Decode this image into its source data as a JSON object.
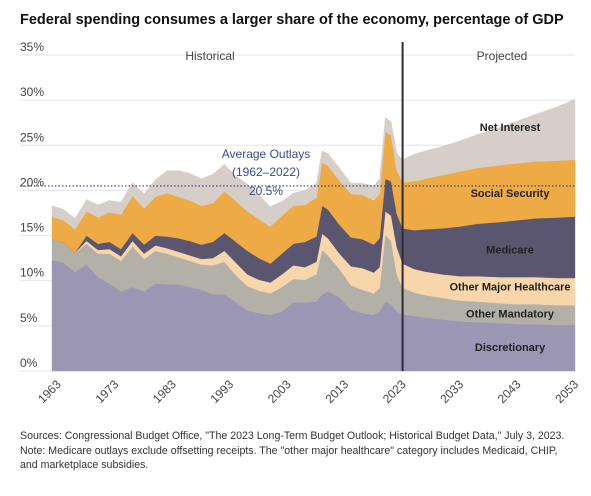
{
  "title": "Federal spending consumes a larger share of the economy, percentage of GDP",
  "sources": [
    "Sources: Congressional Budget Office, \"The 2023 Long-Term Budget Outlook; Historical Budget Data,\" July 3, 2023.",
    "Note: Medicare outlays exclude offsetting receipts. The \"other major healthcare\" category includes Medicaid, CHIP,",
    "and marketplace subsidies."
  ],
  "colors": {
    "discretionary": "#9b96b3",
    "other_mandatory": "#b3b0a8",
    "other_major_healthcare": "#f7d6ab",
    "medicare": "#5b5670",
    "social_security": "#eeaa45",
    "net_interest": "#d6cfc9",
    "average_line": "#2c3e7a",
    "divider": "#2a2a38",
    "grid": "#e4e4e4"
  },
  "chart_data": {
    "type": "area",
    "stacked": true,
    "title": "Federal spending consumes a larger share of the economy, percentage of GDP",
    "xlabel": "",
    "ylabel": "",
    "ylim": [
      0,
      35
    ],
    "xlim": [
      1962,
      2053
    ],
    "y_ticks": [
      "0%",
      "5%",
      "10%",
      "15%",
      "20%",
      "25%",
      "30%",
      "35%"
    ],
    "x_ticks": [
      "1963",
      "1973",
      "1983",
      "1993",
      "2003",
      "2013",
      "2023",
      "2033",
      "2043",
      "2053"
    ],
    "grid": true,
    "regions": {
      "historical": "Historical",
      "projected": "Projected",
      "divider_year": 2023
    },
    "average": {
      "value": 20.5,
      "label_lines": [
        "Average Outlays",
        "(1962–2022)"
      ],
      "value_label": "20.5%"
    },
    "x": [
      1962,
      1964,
      1966,
      1968,
      1970,
      1972,
      1974,
      1976,
      1978,
      1980,
      1982,
      1984,
      1986,
      1988,
      1990,
      1992,
      1994,
      1996,
      1998,
      2000,
      2002,
      2004,
      2006,
      2008,
      2009,
      2010,
      2012,
      2014,
      2016,
      2018,
      2019,
      2020,
      2021,
      2022,
      2023,
      2025,
      2027,
      2030,
      2033,
      2036,
      2040,
      2043,
      2046,
      2050,
      2053
    ],
    "series": [
      {
        "name": "Discretionary",
        "values": [
          12.3,
          12.0,
          11.0,
          11.8,
          10.4,
          9.7,
          8.8,
          9.3,
          8.8,
          9.7,
          9.6,
          9.6,
          9.3,
          9.0,
          8.5,
          8.5,
          7.6,
          6.7,
          6.4,
          6.2,
          6.6,
          7.6,
          7.6,
          7.7,
          8.5,
          8.8,
          8.2,
          6.8,
          6.4,
          6.2,
          6.6,
          7.7,
          7.4,
          6.6,
          6.3,
          6.1,
          5.9,
          5.7,
          5.5,
          5.4,
          5.3,
          5.2,
          5.2,
          5.1,
          5.1
        ]
      },
      {
        "name": "Other Mandatory",
        "values": [
          2.3,
          2.2,
          2.1,
          2.3,
          2.6,
          3.3,
          3.4,
          4.5,
          3.6,
          3.6,
          3.4,
          3.0,
          2.9,
          2.8,
          3.2,
          3.6,
          3.0,
          2.7,
          2.5,
          2.4,
          2.7,
          2.6,
          2.5,
          3.0,
          4.9,
          4.0,
          3.1,
          2.7,
          2.6,
          2.4,
          2.6,
          7.4,
          7.0,
          4.1,
          2.9,
          2.6,
          2.5,
          2.4,
          2.3,
          2.3,
          2.2,
          2.2,
          2.2,
          2.2,
          2.2
        ]
      },
      {
        "name": "Other Major Healthcare",
        "values": [
          0.0,
          0.0,
          0.0,
          0.3,
          0.4,
          0.5,
          0.5,
          0.6,
          0.6,
          0.6,
          0.6,
          0.6,
          0.6,
          0.6,
          0.8,
          1.2,
          1.4,
          1.3,
          1.2,
          1.2,
          1.4,
          1.5,
          1.4,
          1.4,
          1.8,
          1.9,
          1.7,
          2.1,
          2.4,
          2.3,
          2.3,
          2.6,
          2.8,
          3.0,
          2.7,
          2.6,
          2.6,
          2.6,
          2.7,
          2.8,
          2.9,
          3.0,
          3.0,
          3.0,
          3.0
        ]
      },
      {
        "name": "Medicare",
        "values": [
          0.0,
          0.0,
          0.0,
          0.6,
          0.7,
          0.8,
          0.8,
          0.9,
          1.0,
          1.1,
          1.3,
          1.5,
          1.6,
          1.6,
          1.8,
          2.0,
          2.3,
          2.6,
          2.4,
          2.1,
          2.3,
          2.4,
          2.8,
          2.8,
          3.1,
          3.2,
          3.2,
          3.2,
          3.2,
          3.1,
          3.2,
          3.6,
          3.8,
          3.7,
          3.9,
          4.3,
          4.7,
          5.1,
          5.5,
          5.8,
          6.1,
          6.3,
          6.5,
          6.7,
          6.8
        ]
      },
      {
        "name": "Social Security",
        "values": [
          2.5,
          2.5,
          2.6,
          2.7,
          2.9,
          3.3,
          3.8,
          4.1,
          4.0,
          4.3,
          4.8,
          4.6,
          4.5,
          4.3,
          4.3,
          4.6,
          4.5,
          4.4,
          4.3,
          4.1,
          4.2,
          4.2,
          4.1,
          4.3,
          4.8,
          4.8,
          4.9,
          4.8,
          4.9,
          4.9,
          4.9,
          5.2,
          5.1,
          4.8,
          5.1,
          5.4,
          5.6,
          5.9,
          6.1,
          6.2,
          6.3,
          6.3,
          6.3,
          6.3,
          6.3
        ]
      },
      {
        "name": "Net Interest",
        "values": [
          1.2,
          1.2,
          1.2,
          1.3,
          1.4,
          1.3,
          1.4,
          1.5,
          1.6,
          1.9,
          2.5,
          2.9,
          3.0,
          3.0,
          3.2,
          3.0,
          2.8,
          3.0,
          2.7,
          2.2,
          1.6,
          1.4,
          1.6,
          1.6,
          1.3,
          1.4,
          1.4,
          1.2,
          1.3,
          1.6,
          1.7,
          1.6,
          1.5,
          1.9,
          2.5,
          3.0,
          3.1,
          3.2,
          3.4,
          3.7,
          4.2,
          4.7,
          5.2,
          6.0,
          6.7
        ]
      }
    ]
  }
}
